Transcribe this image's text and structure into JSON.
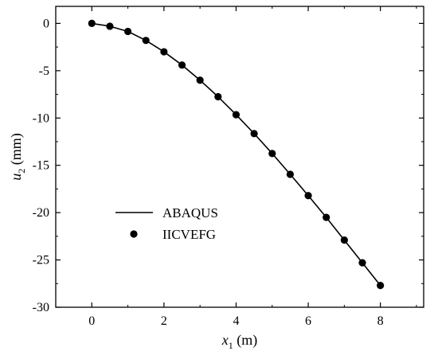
{
  "chart_data": {
    "type": "line",
    "xlabel": {
      "symbol": "x",
      "subscript": "1",
      "unit": " (m)"
    },
    "ylabel": {
      "symbol": "u",
      "subscript": "2",
      "unit": " (mm)"
    },
    "xlim": [
      -1,
      9.2
    ],
    "ylim": [
      -30,
      1.8
    ],
    "x_ticks": [
      0,
      2,
      4,
      6,
      8
    ],
    "y_ticks": [
      0,
      -5,
      -10,
      -15,
      -20,
      -25,
      -30
    ],
    "grid": false,
    "legend_position": "lower-left",
    "series": [
      {
        "name": "ABAQUS",
        "style": "line",
        "color": "#000000",
        "x": [
          0,
          0.5,
          1,
          1.5,
          2,
          2.5,
          3,
          3.5,
          4,
          4.5,
          5,
          5.5,
          6,
          6.5,
          7,
          7.5,
          8
        ],
        "y": [
          0,
          -0.3,
          -0.85,
          -1.8,
          -3.0,
          -4.4,
          -6.0,
          -7.75,
          -9.65,
          -11.65,
          -13.75,
          -15.95,
          -18.2,
          -20.5,
          -22.9,
          -25.3,
          -27.7
        ]
      },
      {
        "name": "IICVEFG",
        "style": "marker",
        "color": "#000000",
        "x": [
          0,
          0.5,
          1,
          1.5,
          2,
          2.5,
          3,
          3.5,
          4,
          4.5,
          5,
          5.5,
          6,
          6.5,
          7,
          7.5,
          8
        ],
        "y": [
          0,
          -0.3,
          -0.85,
          -1.8,
          -3.0,
          -4.4,
          -6.0,
          -7.75,
          -9.65,
          -11.65,
          -13.75,
          -15.95,
          -18.2,
          -20.5,
          -22.9,
          -25.3,
          -27.7
        ]
      }
    ]
  }
}
